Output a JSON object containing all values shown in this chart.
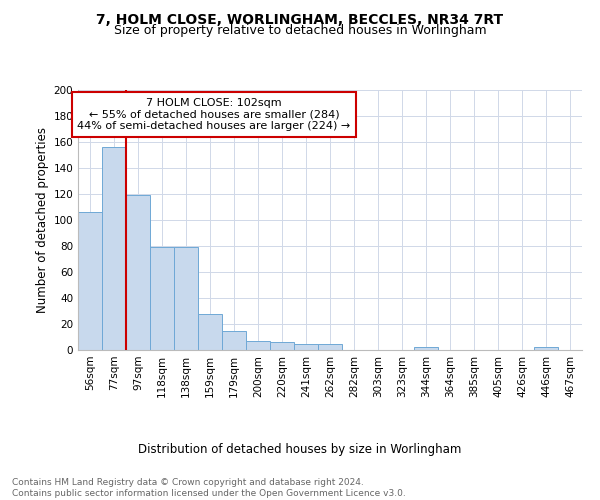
{
  "title": "7, HOLM CLOSE, WORLINGHAM, BECCLES, NR34 7RT",
  "subtitle": "Size of property relative to detached houses in Worlingham",
  "xlabel": "Distribution of detached houses by size in Worlingham",
  "ylabel": "Number of detached properties",
  "bin_labels": [
    "56sqm",
    "77sqm",
    "97sqm",
    "118sqm",
    "138sqm",
    "159sqm",
    "179sqm",
    "200sqm",
    "220sqm",
    "241sqm",
    "262sqm",
    "282sqm",
    "303sqm",
    "323sqm",
    "344sqm",
    "364sqm",
    "385sqm",
    "405sqm",
    "426sqm",
    "446sqm",
    "467sqm"
  ],
  "bar_values": [
    106,
    156,
    119,
    79,
    79,
    28,
    15,
    7,
    6,
    5,
    5,
    0,
    0,
    0,
    2,
    0,
    0,
    0,
    0,
    2,
    0
  ],
  "bar_color": "#c8d9ed",
  "bar_edge_color": "#6fa8d6",
  "vline_x": 1.5,
  "vline_color": "#cc0000",
  "annotation_text": "7 HOLM CLOSE: 102sqm\n← 55% of detached houses are smaller (284)\n44% of semi-detached houses are larger (224) →",
  "annotation_box_color": "#ffffff",
  "annotation_box_edge_color": "#cc0000",
  "ylim": [
    0,
    200
  ],
  "yticks": [
    0,
    20,
    40,
    60,
    80,
    100,
    120,
    140,
    160,
    180,
    200
  ],
  "footer_text": "Contains HM Land Registry data © Crown copyright and database right 2024.\nContains public sector information licensed under the Open Government Licence v3.0.",
  "bg_color": "#ffffff",
  "grid_color": "#d0d8e8",
  "title_fontsize": 10,
  "subtitle_fontsize": 9,
  "axis_label_fontsize": 8.5,
  "tick_fontsize": 7.5,
  "annotation_fontsize": 8,
  "footer_fontsize": 6.5
}
